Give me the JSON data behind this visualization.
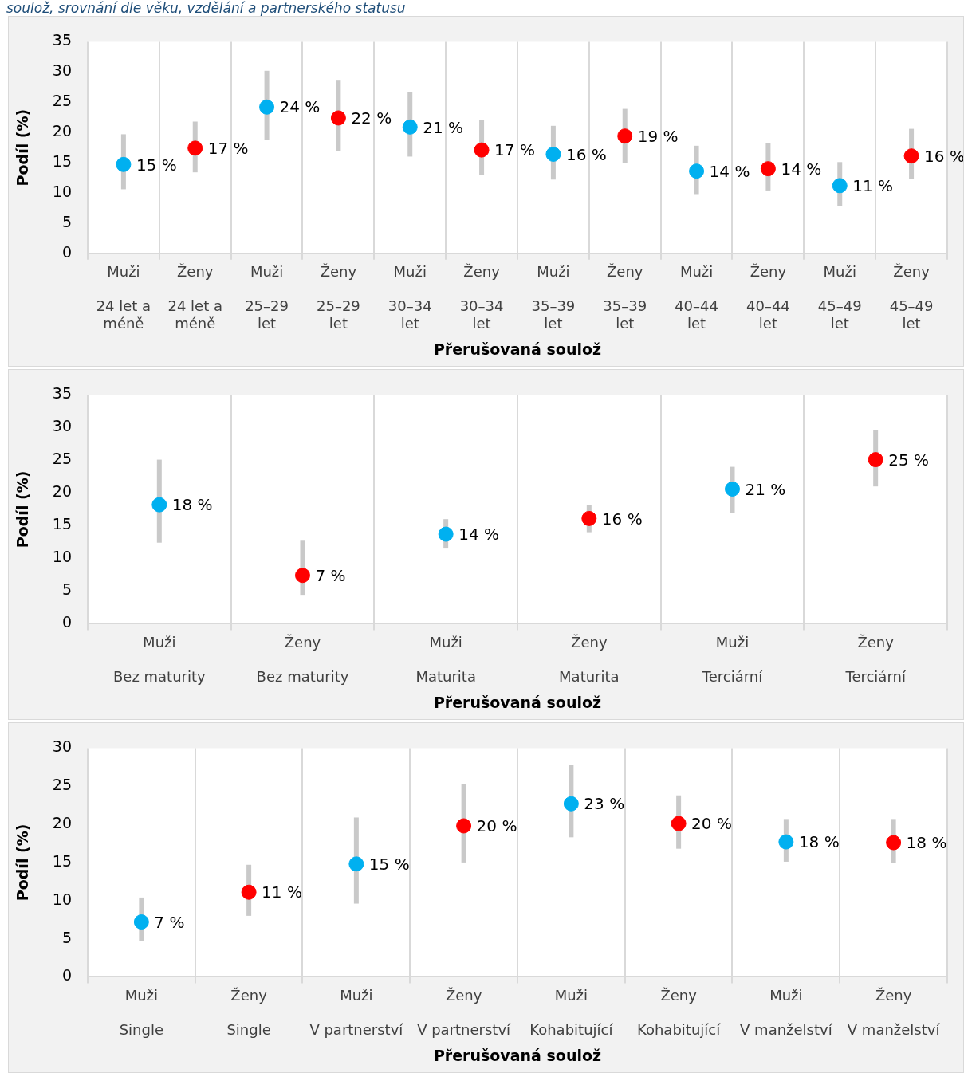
{
  "chart_data": [
    {
      "type": "scatter",
      "title": "soulož, srovnání dle věku, vzdělání a partnerského statusu",
      "xlabel": "Přerušovaná soulož",
      "ylabel": "Podíl (%)",
      "categories": [
        "Muži\n24 let a méně",
        "Ženy\n24 let a méně",
        "Muži\n25–29 let",
        "Ženy\n25–29 let",
        "Muži\n30–34 let",
        "Ženy\n30–34 let",
        "Muži\n35–39 let",
        "Ženy\n35–39 let",
        "Muži\n40–44 let",
        "Ženy\n40–44 let",
        "Muži\n45–49 let",
        "Ženy\n45–49 let"
      ],
      "series": [
        {
          "colors": [
            "#00b0f0",
            "#ff0000",
            "#00b0f0",
            "#ff0000",
            "#00b0f0",
            "#ff0000",
            "#00b0f0",
            "#ff0000",
            "#00b0f0",
            "#ff0000",
            "#00b0f0",
            "#ff0000"
          ],
          "values": [
            14.7,
            17.4,
            24.2,
            22.4,
            20.9,
            17.1,
            16.4,
            19.4,
            13.6,
            14.0,
            11.2,
            16.1
          ],
          "errors": [
            [
              10.6,
              19.7
            ],
            [
              13.4,
              21.8
            ],
            [
              18.8,
              30.2
            ],
            [
              16.9,
              28.7
            ],
            [
              16.0,
              26.7
            ],
            [
              13.0,
              22.1
            ],
            [
              12.2,
              21.1
            ],
            [
              15.0,
              23.9
            ],
            [
              9.8,
              17.8
            ],
            [
              10.4,
              18.3
            ],
            [
              7.8,
              15.1
            ],
            [
              12.3,
              20.6
            ]
          ],
          "value_labels": [
            "15 %",
            "17 %",
            "24 %",
            "22 %",
            "21 %",
            "17 %",
            "16 %",
            "19 %",
            "14 %",
            "14 %",
            "11 %",
            "16 %"
          ]
        }
      ],
      "ylim": [
        0,
        35
      ],
      "yticks": [
        0,
        5,
        10,
        15,
        20,
        25,
        30,
        35
      ],
      "grid": "x",
      "legend": false,
      "marker": "circle"
    },
    {
      "type": "scatter",
      "xlabel": "Přerušovaná soulož",
      "ylabel": "Podíl (%)",
      "categories": [
        "Muži\nBez maturity",
        "Ženy\nBez maturity",
        "Muži\nMaturita",
        "Ženy\nMaturita",
        "Muži\nTerciární",
        "Ženy\nTerciární"
      ],
      "series": [
        {
          "colors": [
            "#00b0f0",
            "#ff0000",
            "#00b0f0",
            "#ff0000",
            "#00b0f0",
            "#ff0000"
          ],
          "values": [
            18.2,
            7.4,
            13.7,
            16.1,
            20.6,
            25.1
          ],
          "errors": [
            [
              12.4,
              25.1
            ],
            [
              4.3,
              12.7
            ],
            [
              11.5,
              16.0
            ],
            [
              14.0,
              18.2
            ],
            [
              17.0,
              24.0
            ],
            [
              21.0,
              29.6
            ]
          ],
          "value_labels": [
            "18 %",
            "7 %",
            "14 %",
            "16 %",
            "21 %",
            "25 %"
          ]
        }
      ],
      "ylim": [
        0,
        35
      ],
      "yticks": [
        0,
        5,
        10,
        15,
        20,
        25,
        30,
        35
      ],
      "grid": "x",
      "legend": false,
      "marker": "circle"
    },
    {
      "type": "scatter",
      "xlabel": "Přerušovaná soulož",
      "ylabel": "Podíl (%)",
      "categories": [
        "Muži\nSingle",
        "Ženy\nSingle",
        "Muži\nV partnerství",
        "Ženy\nV partnerství",
        "Muži\nKohabitující",
        "Ženy\nKohabitující",
        "Muži\nV manželství",
        "Ženy\nV manželství"
      ],
      "series": [
        {
          "colors": [
            "#00b0f0",
            "#ff0000",
            "#00b0f0",
            "#ff0000",
            "#00b0f0",
            "#ff0000",
            "#00b0f0",
            "#ff0000"
          ],
          "values": [
            7.2,
            11.1,
            14.8,
            19.8,
            22.7,
            20.1,
            17.7,
            17.6
          ],
          "errors": [
            [
              4.7,
              10.4
            ],
            [
              8.0,
              14.7
            ],
            [
              9.6,
              20.9
            ],
            [
              15.0,
              25.3
            ],
            [
              18.3,
              27.8
            ],
            [
              16.8,
              23.8
            ],
            [
              15.1,
              20.7
            ],
            [
              14.9,
              20.7
            ]
          ],
          "value_labels": [
            "7 %",
            "11 %",
            "15 %",
            "20 %",
            "23 %",
            "20 %",
            "18 %",
            "18 %"
          ]
        }
      ],
      "ylim": [
        0,
        30
      ],
      "yticks": [
        0,
        5,
        10,
        15,
        20,
        25,
        30
      ],
      "grid": "x",
      "legend": false,
      "marker": "circle"
    }
  ]
}
